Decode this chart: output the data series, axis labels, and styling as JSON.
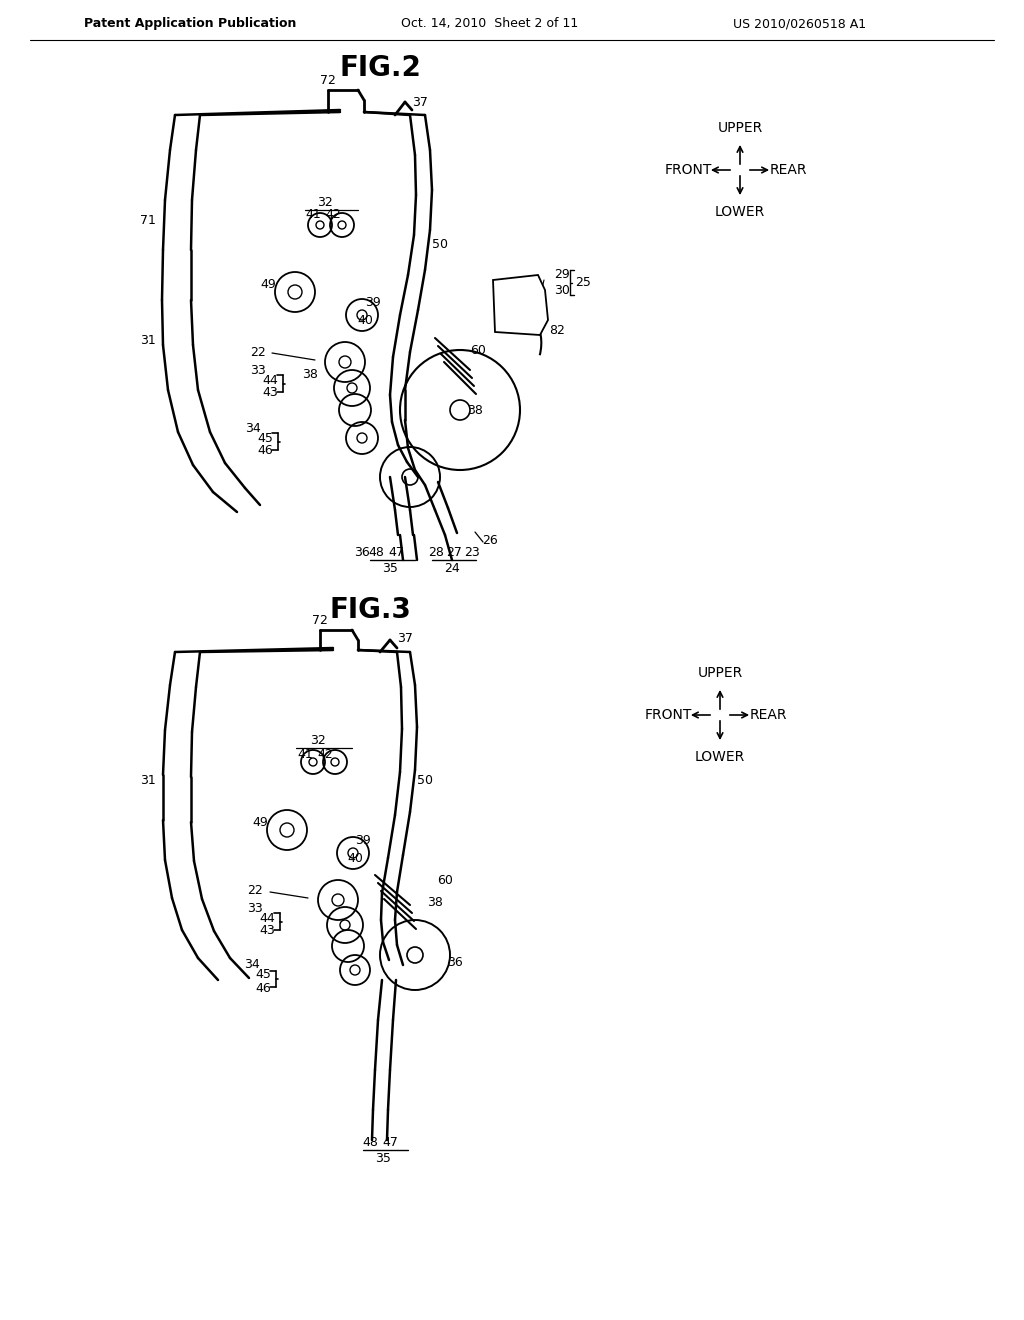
{
  "bg_color": "#ffffff",
  "text_color": "#000000",
  "line_color": "#000000",
  "header_left": "Patent Application Publication",
  "header_center": "Oct. 14, 2010  Sheet 2 of 11",
  "header_right": "US 2010/0260518 A1",
  "fig2_title": "FIG.2",
  "fig3_title": "FIG.3"
}
